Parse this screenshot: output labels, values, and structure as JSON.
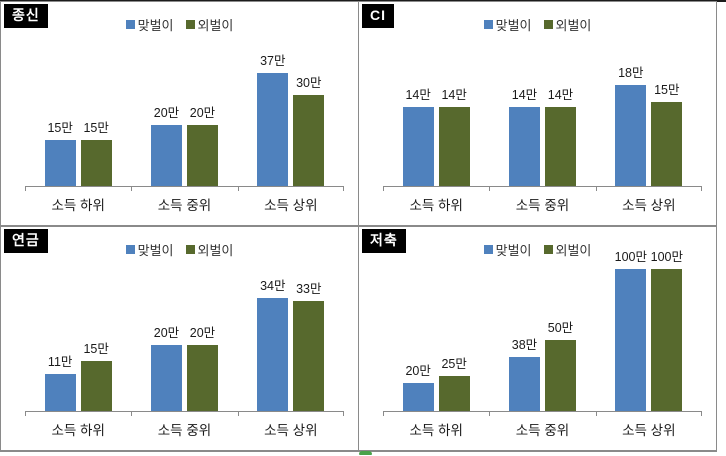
{
  "colors": {
    "series1": "#4F81BD",
    "series2": "#57692D",
    "badge_bg": "#000000",
    "badge_text": "#ffffff",
    "axis": "#8a8a8a",
    "panel_border": "#8a8a8a",
    "label_text": "#1a1a1a",
    "artifact_green": "#4aa34a"
  },
  "legend": {
    "items": [
      {
        "label": "맞벌이",
        "color": "#4F81BD"
      },
      {
        "label": "외벌이",
        "color": "#57692D"
      }
    ],
    "position": "top-center"
  },
  "chart_data": [
    {
      "type": "bar",
      "title": "종신",
      "categories": [
        "소득 하위",
        "소득 중위",
        "소득 상위"
      ],
      "unit": "만",
      "series": [
        {
          "name": "맞벌이",
          "values": [
            15,
            20,
            37
          ],
          "labels": [
            "15만",
            "20만",
            "37만"
          ]
        },
        {
          "name": "외벌이",
          "values": [
            15,
            20,
            30
          ],
          "labels": [
            "15만",
            "20만",
            "30만"
          ]
        }
      ],
      "ylim": [
        0,
        48
      ],
      "grid": false,
      "y_axis_visible": false,
      "legend_position": "top"
    },
    {
      "type": "bar",
      "title": "CI",
      "categories": [
        "소득 하위",
        "소득 중위",
        "소득 상위"
      ],
      "unit": "만",
      "series": [
        {
          "name": "맞벌이",
          "values": [
            14,
            14,
            18
          ],
          "labels": [
            "14만",
            "14만",
            "18만"
          ]
        },
        {
          "name": "외벌이",
          "values": [
            14,
            14,
            15
          ],
          "labels": [
            "14만",
            "14만",
            "15만"
          ]
        }
      ],
      "ylim": [
        0,
        26
      ],
      "grid": false,
      "y_axis_visible": false,
      "legend_position": "top"
    },
    {
      "type": "bar",
      "title": "연금",
      "categories": [
        "소득 하위",
        "소득 중위",
        "소득 상위"
      ],
      "unit": "만",
      "series": [
        {
          "name": "맞벌이",
          "values": [
            11,
            20,
            34
          ],
          "labels": [
            "11만",
            "20만",
            "34만"
          ]
        },
        {
          "name": "외벌이",
          "values": [
            15,
            20,
            33
          ],
          "labels": [
            "15만",
            "20만",
            "33만"
          ]
        }
      ],
      "ylim": [
        0,
        44
      ],
      "grid": false,
      "y_axis_visible": false,
      "legend_position": "top"
    },
    {
      "type": "bar",
      "title": "저축",
      "categories": [
        "소득 하위",
        "소득 중위",
        "소득 상위"
      ],
      "unit": "만",
      "series": [
        {
          "name": "맞벌이",
          "values": [
            20,
            38,
            100
          ],
          "labels": [
            "20만",
            "38만",
            "100만"
          ]
        },
        {
          "name": "외벌이",
          "values": [
            25,
            50,
            100
          ],
          "labels": [
            "25만",
            "50만",
            "100만"
          ]
        }
      ],
      "ylim": [
        0,
        103
      ],
      "grid": false,
      "y_axis_visible": false,
      "legend_position": "top"
    }
  ]
}
